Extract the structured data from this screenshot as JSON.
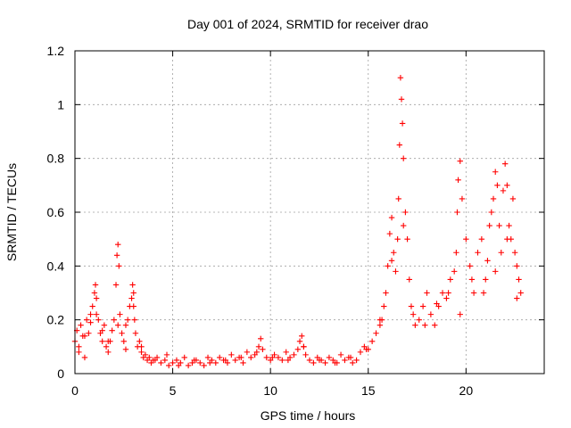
{
  "chart_data": {
    "type": "scatter",
    "title": "Day 001 of 2024, SRMTID for receiver drao",
    "xlabel": "GPS time / hours",
    "ylabel": "SRMTID / TECUs",
    "xlim": [
      0,
      24
    ],
    "ylim": [
      0,
      1.2
    ],
    "xticks": [
      0,
      5,
      10,
      15,
      20
    ],
    "xtick_labels": [
      "0",
      "5",
      "10",
      "15",
      "20"
    ],
    "yticks": [
      0,
      0.2,
      0.4,
      0.6,
      0.8,
      1.0,
      1.2
    ],
    "ytick_labels": [
      "0",
      "0.2",
      "0.4",
      "0.6",
      "0.8",
      "1",
      "1.2"
    ],
    "grid": true,
    "marker": "+",
    "marker_color": "#ff0000",
    "series": [
      {
        "name": "SRMTID",
        "x": [
          0.0,
          0.1,
          0.2,
          0.3,
          0.4,
          0.5,
          0.6,
          0.7,
          0.8,
          0.9,
          1.0,
          1.05,
          1.1,
          1.2,
          1.3,
          1.4,
          1.5,
          1.6,
          1.7,
          1.8,
          1.9,
          2.0,
          2.1,
          2.15,
          2.2,
          2.25,
          2.3,
          2.4,
          2.5,
          2.6,
          2.7,
          2.8,
          2.9,
          2.95,
          3.0,
          3.05,
          3.1,
          3.2,
          3.3,
          3.4,
          3.5,
          3.6,
          3.7,
          3.8,
          3.9,
          4.0,
          4.2,
          4.4,
          4.6,
          4.8,
          5.0,
          5.2,
          5.4,
          5.6,
          5.8,
          6.0,
          6.2,
          6.4,
          6.6,
          6.8,
          7.0,
          7.2,
          7.4,
          7.6,
          7.8,
          8.0,
          8.2,
          8.4,
          8.6,
          8.8,
          9.0,
          9.2,
          9.4,
          9.5,
          9.6,
          9.8,
          10.0,
          10.2,
          10.4,
          10.6,
          10.8,
          11.0,
          11.2,
          11.4,
          11.5,
          11.6,
          11.7,
          11.8,
          12.0,
          12.2,
          12.4,
          12.6,
          12.8,
          13.0,
          13.2,
          13.4,
          13.6,
          13.8,
          14.0,
          14.2,
          14.4,
          14.6,
          14.8,
          15.0,
          15.2,
          15.4,
          15.6,
          15.7,
          15.8,
          15.9,
          16.0,
          16.1,
          16.2,
          16.3,
          16.4,
          16.5,
          16.55,
          16.6,
          16.65,
          16.7,
          16.75,
          16.8,
          16.9,
          17.0,
          17.1,
          17.2,
          17.4,
          17.6,
          17.8,
          18.0,
          18.2,
          18.4,
          18.6,
          18.8,
          19.0,
          19.2,
          19.4,
          19.5,
          19.55,
          19.6,
          19.7,
          19.8,
          20.0,
          20.2,
          20.4,
          20.6,
          20.8,
          21.0,
          21.1,
          21.2,
          21.3,
          21.4,
          21.5,
          21.6,
          21.7,
          21.8,
          21.9,
          22.0,
          22.1,
          22.2,
          22.3,
          22.4,
          22.5,
          22.6,
          22.7,
          22.8,
          0.2,
          0.5,
          0.8,
          1.1,
          1.4,
          1.7,
          2.2,
          2.6,
          3.0,
          3.4,
          4.1,
          4.7,
          5.3,
          6.1,
          6.9,
          7.7,
          8.5,
          9.3,
          10.1,
          10.9,
          11.7,
          12.5,
          13.3,
          14.1,
          14.9,
          15.6,
          16.2,
          16.8,
          17.3,
          17.9,
          18.5,
          19.1,
          19.7,
          20.3,
          20.9,
          21.5,
          22.1,
          22.6
        ],
        "y": [
          0.12,
          0.16,
          0.1,
          0.18,
          0.14,
          0.06,
          0.2,
          0.15,
          0.22,
          0.25,
          0.3,
          0.33,
          0.28,
          0.2,
          0.15,
          0.12,
          0.18,
          0.1,
          0.08,
          0.12,
          0.16,
          0.2,
          0.33,
          0.44,
          0.48,
          0.4,
          0.22,
          0.15,
          0.12,
          0.18,
          0.2,
          0.25,
          0.28,
          0.33,
          0.3,
          0.2,
          0.15,
          0.1,
          0.12,
          0.08,
          0.06,
          0.07,
          0.05,
          0.06,
          0.04,
          0.05,
          0.06,
          0.04,
          0.05,
          0.03,
          0.04,
          0.05,
          0.04,
          0.06,
          0.03,
          0.04,
          0.05,
          0.04,
          0.03,
          0.06,
          0.05,
          0.04,
          0.06,
          0.05,
          0.04,
          0.07,
          0.05,
          0.06,
          0.04,
          0.08,
          0.06,
          0.07,
          0.1,
          0.13,
          0.09,
          0.06,
          0.05,
          0.07,
          0.06,
          0.05,
          0.08,
          0.06,
          0.07,
          0.09,
          0.12,
          0.14,
          0.1,
          0.07,
          0.05,
          0.04,
          0.06,
          0.05,
          0.04,
          0.06,
          0.05,
          0.04,
          0.07,
          0.05,
          0.06,
          0.04,
          0.05,
          0.08,
          0.1,
          0.09,
          0.12,
          0.15,
          0.18,
          0.2,
          0.25,
          0.3,
          0.4,
          0.52,
          0.58,
          0.45,
          0.38,
          0.5,
          0.65,
          0.85,
          1.1,
          1.02,
          0.93,
          0.8,
          0.6,
          0.5,
          0.35,
          0.25,
          0.18,
          0.2,
          0.25,
          0.3,
          0.22,
          0.18,
          0.25,
          0.3,
          0.28,
          0.35,
          0.38,
          0.45,
          0.6,
          0.72,
          0.79,
          0.65,
          0.5,
          0.4,
          0.3,
          0.45,
          0.5,
          0.35,
          0.42,
          0.55,
          0.6,
          0.65,
          0.75,
          0.7,
          0.55,
          0.45,
          0.68,
          0.78,
          0.7,
          0.55,
          0.5,
          0.65,
          0.45,
          0.4,
          0.35,
          0.3,
          0.08,
          0.14,
          0.19,
          0.22,
          0.16,
          0.12,
          0.18,
          0.09,
          0.25,
          0.1,
          0.05,
          0.07,
          0.03,
          0.05,
          0.04,
          0.05,
          0.06,
          0.08,
          0.06,
          0.05,
          0.1,
          0.05,
          0.04,
          0.06,
          0.09,
          0.2,
          0.42,
          0.55,
          0.22,
          0.18,
          0.26,
          0.3,
          0.22,
          0.35,
          0.3,
          0.38,
          0.5,
          0.28
        ]
      }
    ]
  }
}
